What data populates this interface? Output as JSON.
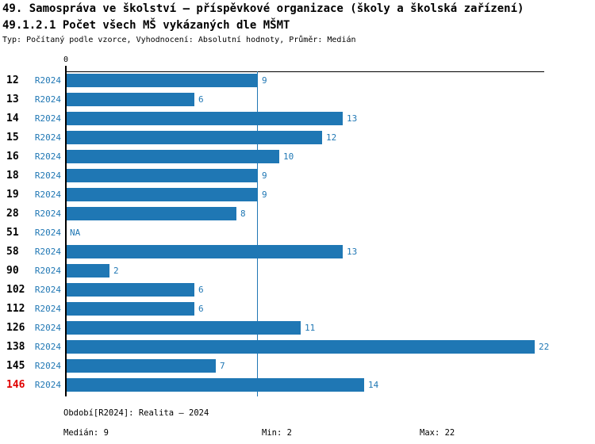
{
  "header": {
    "title": "49. Samospráva ve školství – příspěvkové organizace (školy a školská zařízení)",
    "subtitle": "49.1.2.1 Počet všech MŠ vykázaných dle MŠMT",
    "meta": "Typ: Počítaný podle vzorce, Vyhodnocení: Absolutní hodnoty, Průměr: Medián"
  },
  "chart_data": {
    "type": "bar",
    "orientation": "horizontal",
    "title": "49.1.2.1 Počet všech MŠ vykázaných dle MŠMT",
    "categories": [
      "12",
      "13",
      "14",
      "15",
      "16",
      "18",
      "19",
      "28",
      "51",
      "58",
      "90",
      "102",
      "112",
      "126",
      "138",
      "145",
      "146"
    ],
    "series": [
      {
        "name": "R2024",
        "values": [
          9,
          6,
          13,
          12,
          10,
          9,
          9,
          8,
          null,
          13,
          2,
          6,
          6,
          11,
          22,
          7,
          14
        ]
      }
    ],
    "na_text": "NA",
    "zero_tick_label": "0",
    "xlim": [
      0,
      22.5
    ],
    "median": 9,
    "min": 2,
    "max": 22,
    "highlight_category": "146",
    "grid": false,
    "legend_position": "none",
    "colors": {
      "bar": "#1f77b4",
      "text_blue": "#1f77b4",
      "highlight_red": "#e00000",
      "axis_black": "#000000"
    }
  },
  "footer": {
    "period": "Období[R2024]: Realita – 2024",
    "median": "Medián: 9",
    "min": "Min: 2",
    "max": "Max: 22"
  }
}
